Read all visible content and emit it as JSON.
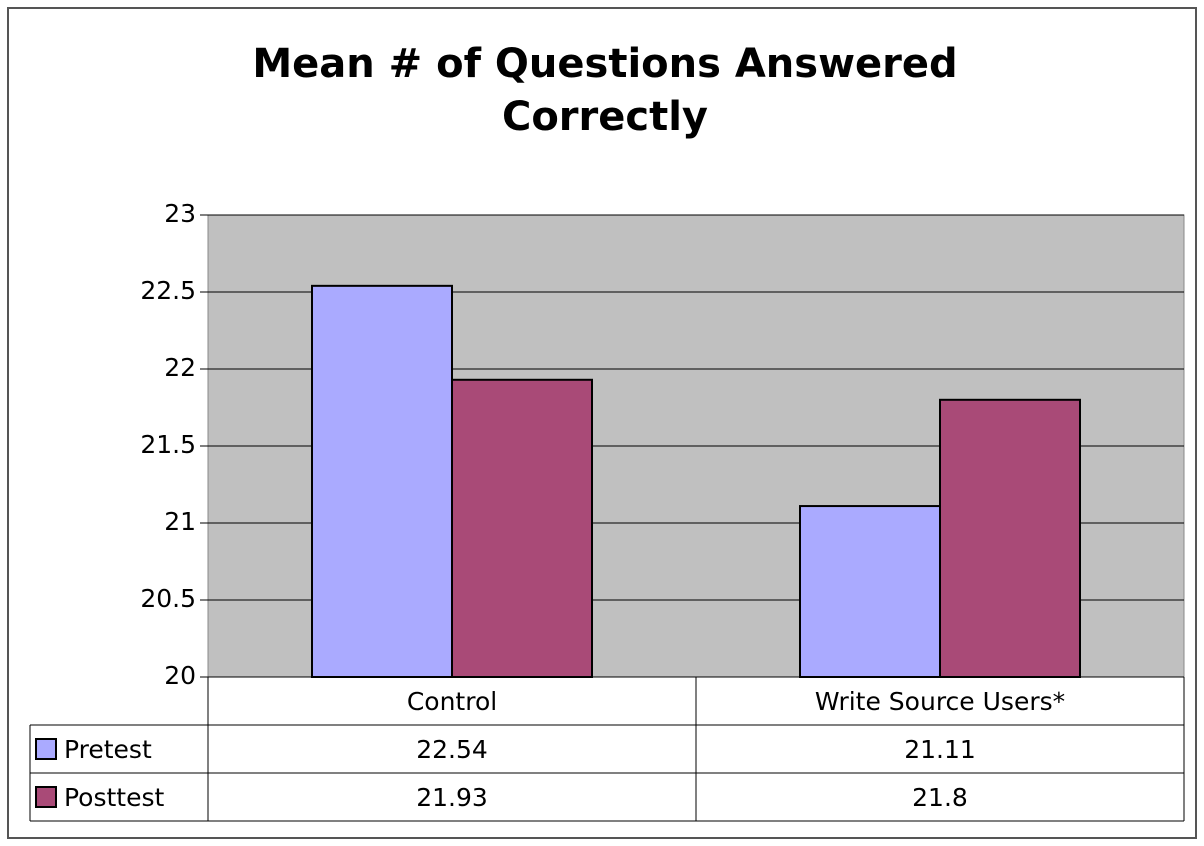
{
  "chart_data": {
    "type": "bar",
    "title": "Mean # of Questions Answered Correctly",
    "categories": [
      "Control",
      "Write Source Users*"
    ],
    "series": [
      {
        "name": "Pretest",
        "color": "#aaaaff",
        "values": [
          22.54,
          21.11
        ]
      },
      {
        "name": "Posttest",
        "color": "#a94a77",
        "values": [
          21.93,
          21.8
        ]
      }
    ],
    "ylim": [
      20,
      23
    ],
    "yticks": [
      20,
      20.5,
      21,
      21.5,
      22,
      22.5,
      23
    ],
    "grid": true,
    "plot_background": "#c0c0c0"
  }
}
